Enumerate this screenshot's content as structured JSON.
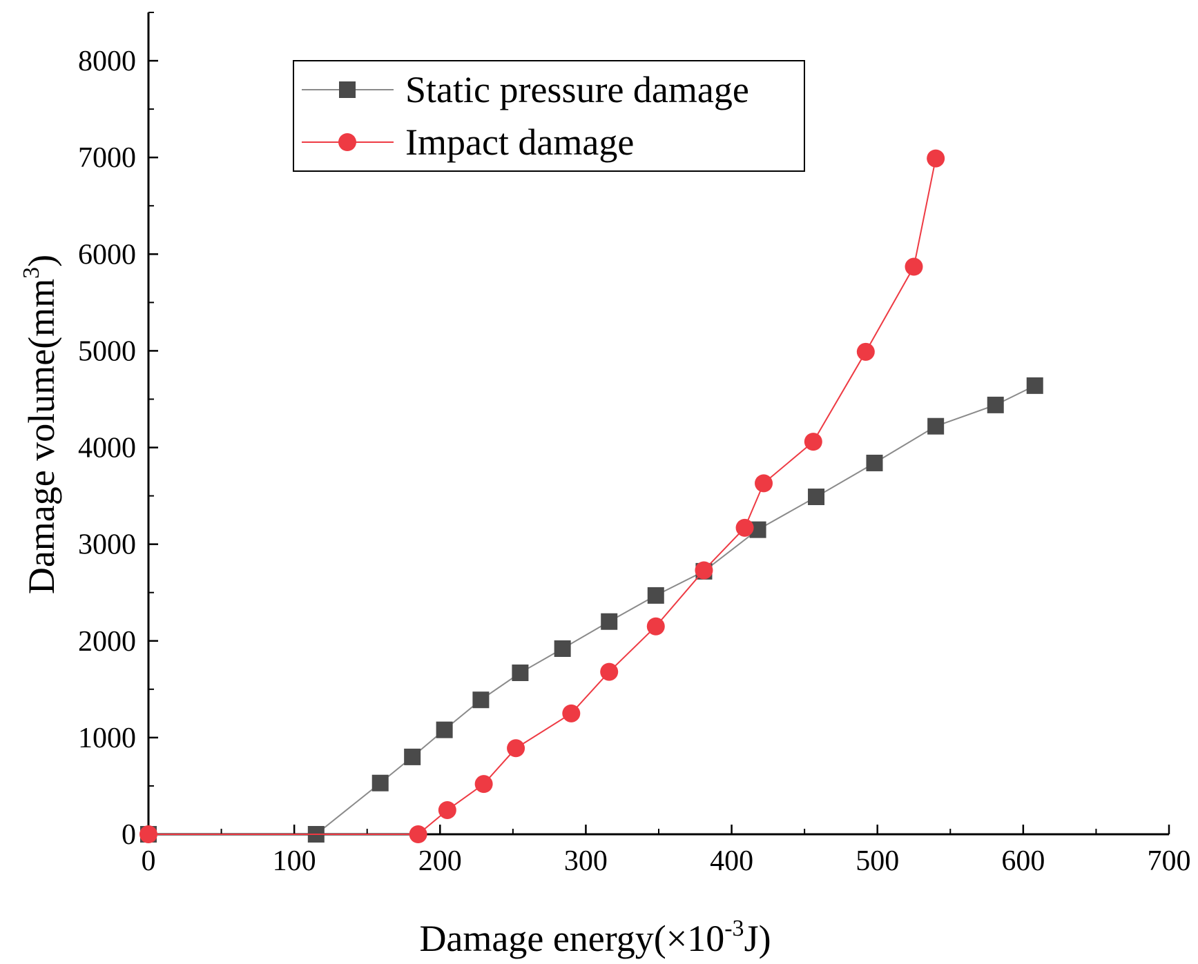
{
  "chart_data": {
    "type": "line",
    "title": "",
    "xlabel": {
      "main": "Damage energy(×10",
      "sup": "-3",
      "unit": "J)"
    },
    "ylabel": {
      "main": "Damage volume(mm",
      "sup": "3",
      "close": ")"
    },
    "xlim": [
      0,
      700
    ],
    "ylim": [
      0,
      8500
    ],
    "xticks": [
      0,
      100,
      200,
      300,
      400,
      500,
      600,
      700
    ],
    "yticks": [
      0,
      1000,
      2000,
      3000,
      4000,
      5000,
      6000,
      7000,
      8000
    ],
    "grid": false,
    "legend_position": "top-center",
    "series": [
      {
        "name": "Static pressure damage",
        "marker": "square",
        "color": "#4a4a4a",
        "line_color": "#8a8a8a",
        "x": [
          0,
          115,
          159,
          181,
          203,
          228,
          255,
          284,
          316,
          348,
          381,
          418,
          458,
          498,
          540,
          581,
          608
        ],
        "y": [
          0,
          0,
          530,
          800,
          1080,
          1390,
          1670,
          1920,
          2200,
          2470,
          2720,
          3150,
          3490,
          3840,
          4220,
          4440,
          4640
        ]
      },
      {
        "name": "Impact damage",
        "marker": "circle",
        "color": "#ee3a43",
        "line_color": "#ee3a43",
        "x": [
          0,
          185,
          205,
          230,
          252,
          290,
          316,
          348,
          381,
          409,
          422,
          456,
          492,
          525,
          540
        ],
        "y": [
          0,
          0,
          250,
          520,
          890,
          1250,
          1680,
          2150,
          2730,
          3170,
          3630,
          4060,
          4990,
          5870,
          6990
        ]
      }
    ]
  }
}
